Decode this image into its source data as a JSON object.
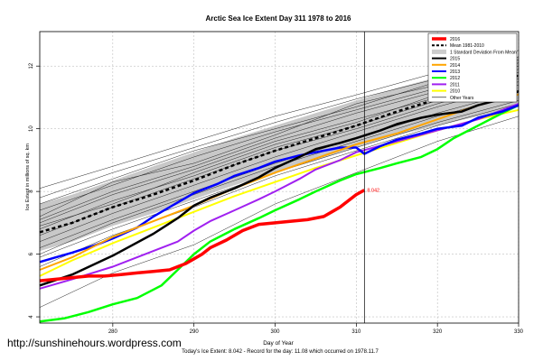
{
  "chart_data": {
    "type": "line",
    "title": "Arctic Sea Ice Extent Day 311 1978 to 2016",
    "xlabel": "Day of Year",
    "ylabel": "Ice Extent in millions of sq. km",
    "xlim": [
      271,
      330
    ],
    "ylim": [
      3.8,
      13.1
    ],
    "x_ticks": [
      280,
      290,
      300,
      310,
      320,
      330
    ],
    "y_ticks": [
      4,
      6,
      8,
      10,
      12
    ],
    "legend_position": "top-right",
    "current_day": 311,
    "current_value_label": "8.042",
    "footer": "Today's Ice Extent: 8.042  - Record for the day: 11.08 which occurred on 1978.11.7",
    "source_url": "http://sunshinehours.wordpress.com",
    "legend": [
      {
        "label": "2016",
        "color": "#ff0000",
        "style": "thick"
      },
      {
        "label": "Mean 1981-2010",
        "color": "#000000",
        "style": "dashed"
      },
      {
        "label": "1 Standard Deviation From Mean",
        "color": "#cccccc",
        "style": "band"
      },
      {
        "label": "2015",
        "color": "#000000",
        "style": "line"
      },
      {
        "label": "2014",
        "color": "#ffa500",
        "style": "line"
      },
      {
        "label": "2013",
        "color": "#0000ff",
        "style": "line"
      },
      {
        "label": "2012",
        "color": "#00ff00",
        "style": "line"
      },
      {
        "label": "2011",
        "color": "#a020f0",
        "style": "line"
      },
      {
        "label": "2010",
        "color": "#ffff00",
        "style": "line"
      },
      {
        "label": "Other Years",
        "color": "#000000",
        "style": "thin"
      }
    ],
    "band": {
      "x": [
        271,
        275,
        280,
        285,
        290,
        295,
        300,
        305,
        310,
        315,
        320,
        325,
        330
      ],
      "lower": [
        6.1,
        6.4,
        6.9,
        7.3,
        7.75,
        8.2,
        8.6,
        9.0,
        9.4,
        9.8,
        10.1,
        10.4,
        10.7
      ],
      "upper": [
        7.6,
        7.9,
        8.35,
        8.8,
        9.25,
        9.7,
        10.1,
        10.5,
        10.9,
        11.3,
        11.65,
        12.0,
        12.3
      ]
    },
    "mean": {
      "x": [
        271,
        275,
        280,
        285,
        290,
        295,
        300,
        305,
        310,
        315,
        320,
        325,
        330
      ],
      "y": [
        6.7,
        7.0,
        7.5,
        7.9,
        8.35,
        8.85,
        9.3,
        9.7,
        10.1,
        10.55,
        10.95,
        11.3,
        11.7
      ]
    },
    "series": [
      {
        "name": "2016",
        "color": "#ff0000",
        "width": 3.5,
        "x": [
          271,
          273,
          275,
          277,
          279,
          281,
          283,
          285,
          287,
          288,
          289,
          290,
          291,
          292,
          294,
          296,
          298,
          300,
          302,
          304,
          306,
          307,
          308,
          309,
          310,
          311
        ],
        "y": [
          5.15,
          5.2,
          5.25,
          5.3,
          5.3,
          5.35,
          5.4,
          5.45,
          5.5,
          5.6,
          5.7,
          5.85,
          6.0,
          6.2,
          6.45,
          6.75,
          6.95,
          7.0,
          7.05,
          7.1,
          7.2,
          7.35,
          7.5,
          7.7,
          7.9,
          8.04
        ]
      },
      {
        "name": "2015",
        "color": "#000000",
        "width": 2.5,
        "x": [
          271,
          275,
          280,
          285,
          288,
          290,
          292,
          295,
          298,
          300,
          303,
          305,
          308,
          310,
          313,
          315,
          318,
          320,
          323,
          325,
          328,
          330
        ],
        "y": [
          5.0,
          5.35,
          5.95,
          6.65,
          7.15,
          7.55,
          7.8,
          8.1,
          8.45,
          8.75,
          9.1,
          9.35,
          9.55,
          9.7,
          9.95,
          10.15,
          10.35,
          10.45,
          10.55,
          10.75,
          10.95,
          11.2
        ]
      },
      {
        "name": "2014",
        "color": "#ffa500",
        "width": 2,
        "x": [
          271,
          275,
          280,
          285,
          290,
          295,
          300,
          305,
          310,
          315,
          320,
          325,
          330
        ],
        "y": [
          5.5,
          5.9,
          6.55,
          7.05,
          7.55,
          8.1,
          8.6,
          9.05,
          9.5,
          9.85,
          10.3,
          10.75,
          11.1
        ]
      },
      {
        "name": "2013",
        "color": "#0000ff",
        "width": 2.5,
        "x": [
          271,
          273,
          275,
          278,
          280,
          283,
          285,
          288,
          290,
          293,
          295,
          298,
          300,
          303,
          305,
          308,
          310,
          311,
          313,
          315,
          318,
          320,
          323,
          325,
          328,
          330
        ],
        "y": [
          5.75,
          5.9,
          6.05,
          6.3,
          6.5,
          6.85,
          7.2,
          7.65,
          7.95,
          8.25,
          8.5,
          8.75,
          8.95,
          9.15,
          9.25,
          9.4,
          9.4,
          9.2,
          9.45,
          9.65,
          9.85,
          10.0,
          10.1,
          10.35,
          10.55,
          10.75
        ]
      },
      {
        "name": "2012",
        "color": "#00ff00",
        "width": 2.5,
        "x": [
          271,
          274,
          277,
          280,
          283,
          286,
          288,
          290,
          292,
          295,
          298,
          300,
          303,
          305,
          308,
          310,
          313,
          315,
          318,
          320,
          322,
          325,
          328,
          330
        ],
        "y": [
          3.85,
          3.95,
          4.15,
          4.4,
          4.6,
          5.0,
          5.5,
          6.0,
          6.4,
          6.8,
          7.15,
          7.4,
          7.75,
          8.0,
          8.35,
          8.55,
          8.75,
          8.9,
          9.1,
          9.35,
          9.7,
          10.1,
          10.5,
          10.75
        ]
      },
      {
        "name": "2011",
        "color": "#a020f0",
        "width": 2,
        "x": [
          271,
          275,
          280,
          285,
          288,
          290,
          292,
          295,
          298,
          300,
          303,
          305,
          308,
          310,
          315,
          320,
          325,
          330
        ],
        "y": [
          4.9,
          5.2,
          5.6,
          6.1,
          6.4,
          6.75,
          7.05,
          7.4,
          7.75,
          8.0,
          8.4,
          8.7,
          9.0,
          9.25,
          9.6,
          9.95,
          10.3,
          10.8
        ]
      },
      {
        "name": "2010",
        "color": "#ffff00",
        "width": 2,
        "x": [
          271,
          275,
          280,
          285,
          290,
          295,
          300,
          305,
          310,
          315,
          320,
          325,
          330
        ],
        "y": [
          5.3,
          5.8,
          6.35,
          6.85,
          7.35,
          7.85,
          8.3,
          8.75,
          9.15,
          9.55,
          9.95,
          10.3,
          10.6
        ]
      }
    ],
    "other_years": [
      {
        "x": [
          271,
          280,
          290,
          300,
          310,
          320,
          330
        ],
        "y": [
          7.8,
          8.6,
          9.4,
          10.2,
          10.95,
          11.6,
          12.3
        ]
      },
      {
        "x": [
          271,
          280,
          290,
          300,
          310,
          320,
          330
        ],
        "y": [
          7.4,
          8.2,
          9.1,
          9.9,
          10.6,
          11.3,
          12.0
        ]
      },
      {
        "x": [
          271,
          280,
          290,
          300,
          310,
          320,
          330
        ],
        "y": [
          7.0,
          7.9,
          8.7,
          9.6,
          10.3,
          11.0,
          11.7
        ]
      },
      {
        "x": [
          271,
          280,
          290,
          300,
          310,
          320,
          330
        ],
        "y": [
          6.6,
          7.5,
          8.4,
          9.3,
          10.0,
          10.8,
          11.5
        ]
      },
      {
        "x": [
          271,
          280,
          290,
          300,
          310,
          320,
          330
        ],
        "y": [
          6.2,
          7.1,
          8.0,
          8.9,
          9.7,
          10.5,
          11.2
        ]
      },
      {
        "x": [
          271,
          280,
          290,
          300,
          310,
          320,
          330
        ],
        "y": [
          5.9,
          6.8,
          7.7,
          8.6,
          9.4,
          10.2,
          10.9
        ]
      },
      {
        "x": [
          271,
          280,
          290,
          300,
          310,
          320,
          330
        ],
        "y": [
          7.2,
          8.3,
          8.9,
          9.8,
          10.8,
          11.4,
          12.1
        ]
      },
      {
        "x": [
          271,
          280,
          290,
          300,
          310,
          320,
          330
        ],
        "y": [
          6.9,
          7.6,
          8.6,
          9.5,
          10.2,
          11.1,
          11.9
        ]
      },
      {
        "x": [
          271,
          280,
          290,
          300,
          310,
          320,
          330
        ],
        "y": [
          6.4,
          7.3,
          8.2,
          9.1,
          9.9,
          10.7,
          11.4
        ]
      },
      {
        "x": [
          271,
          280,
          290,
          300,
          310,
          320,
          330
        ],
        "y": [
          7.6,
          8.4,
          9.3,
          10.0,
          10.7,
          11.5,
          12.2
        ]
      },
      {
        "x": [
          271,
          280,
          290,
          300,
          310,
          320,
          330
        ],
        "y": [
          6.0,
          7.0,
          7.9,
          8.8,
          9.6,
          10.4,
          11.1
        ]
      },
      {
        "x": [
          271,
          280,
          290,
          300,
          310,
          320,
          330
        ],
        "y": [
          5.6,
          6.6,
          7.5,
          8.5,
          9.3,
          10.1,
          10.8
        ]
      },
      {
        "x": [
          271,
          280,
          290,
          300,
          310,
          320,
          330
        ],
        "y": [
          4.3,
          5.4,
          6.3,
          7.6,
          8.6,
          9.6,
          10.4
        ]
      },
      {
        "x": [
          271,
          280,
          290,
          300,
          310,
          320,
          330
        ],
        "y": [
          8.1,
          8.8,
          9.6,
          10.4,
          11.08,
          11.8,
          12.5
        ]
      },
      {
        "x": [
          271,
          280,
          290,
          300,
          310,
          320,
          330
        ],
        "y": [
          6.8,
          7.7,
          8.5,
          9.4,
          10.1,
          10.9,
          11.6
        ]
      },
      {
        "x": [
          271,
          280,
          290,
          300,
          310,
          320,
          330
        ],
        "y": [
          7.1,
          8.0,
          8.8,
          9.7,
          10.5,
          11.2,
          11.8
        ]
      }
    ]
  }
}
